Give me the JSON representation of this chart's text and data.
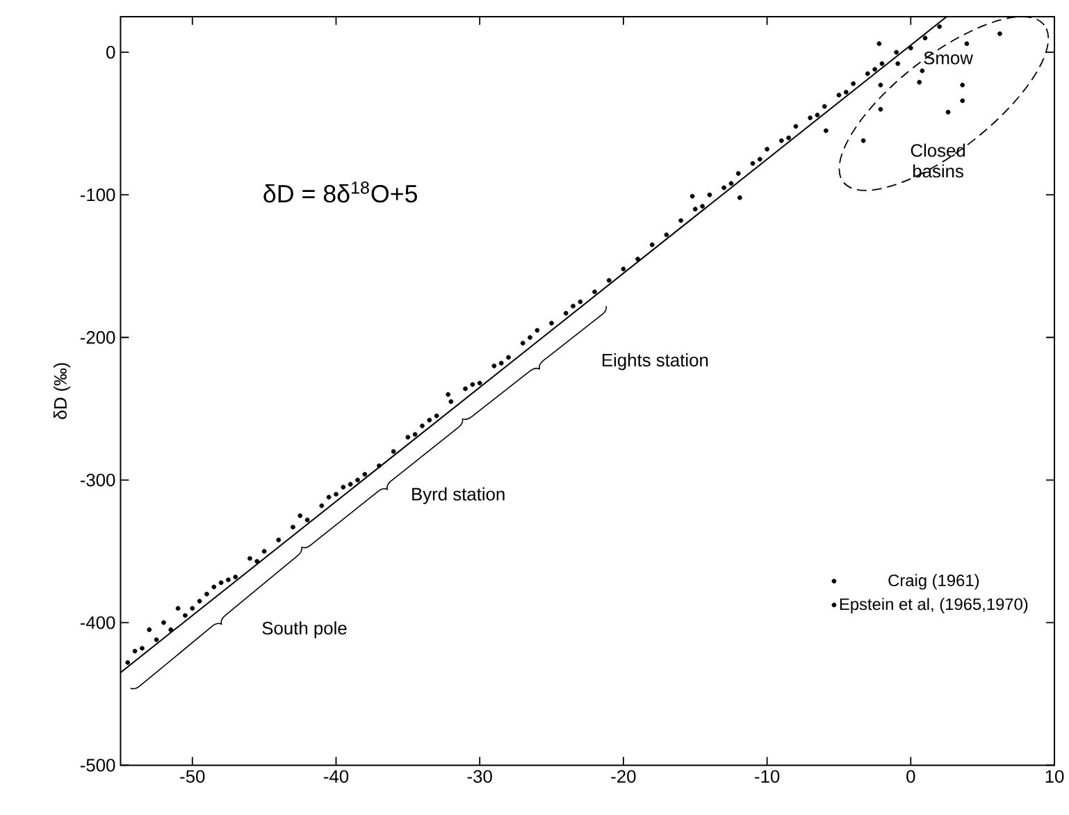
{
  "chart_data": {
    "type": "scatter",
    "ylabel": "δD (‰)",
    "xlim": [
      -55,
      10
    ],
    "ylim": [
      -500,
      25
    ],
    "xticks": [
      -50,
      -40,
      -30,
      -20,
      -10,
      0,
      10
    ],
    "yticks": [
      -500,
      -400,
      -300,
      -200,
      -100,
      0
    ],
    "marker": "circle",
    "legend": "right",
    "grid": false,
    "annotations": [
      "δD = 8δ$^{18}$O+5",
      "Smow",
      "Closed basins",
      "Eights station",
      "Byrd station",
      "South pole"
    ],
    "series": [
      {
        "name": "Craig (1961)",
        "color": "#000000",
        "x": [
          -19,
          -18,
          -17,
          -16,
          -15,
          -14.5,
          -14,
          -13,
          -12.5,
          -12,
          -11,
          -10.5,
          -10,
          -9,
          -8.5,
          -8,
          -7,
          -6.5,
          -6,
          -5,
          -4.5,
          -4,
          -3,
          -2.5,
          -2,
          -1,
          0,
          1,
          2,
          6.2,
          3.9,
          3.6,
          3.6,
          2.6,
          0.6,
          -2.1,
          -2.1,
          -3.3,
          -5.9,
          0.8,
          -0.9,
          -2.2,
          -11.9,
          -15.2
        ],
        "values": [
          -145,
          -135,
          -128,
          -118,
          -110,
          -108,
          -100,
          -95,
          -92,
          -85,
          -78,
          -75,
          -68,
          -62,
          -60,
          -52,
          -46,
          -44,
          -38,
          -30,
          -28,
          -22,
          -15,
          -12,
          -8,
          0,
          3,
          10,
          18,
          13,
          6,
          -23,
          -34,
          -42,
          -21,
          -23,
          -40,
          -62,
          -55,
          -13,
          -8,
          6,
          -102,
          -101
        ]
      },
      {
        "name": "Epstein et al, (1965,1970)",
        "color": "#000000",
        "x": [
          -54.5,
          -54,
          -53.5,
          -53,
          -52.5,
          -52,
          -51.5,
          -51,
          -50.5,
          -50,
          -49.5,
          -49,
          -48.5,
          -48,
          -47.5,
          -47,
          -46,
          -45.5,
          -45,
          -44,
          -43,
          -42.5,
          -42,
          -41,
          -40.5,
          -40,
          -39.5,
          -39,
          -38.5,
          -38,
          -37,
          -36,
          -35,
          -34.5,
          -34,
          -33.5,
          -33,
          -32.2,
          -32,
          -31,
          -30.5,
          -30,
          -29,
          -28.5,
          -28,
          -27,
          -26.5,
          -26,
          -25,
          -24,
          -23.5,
          -23,
          -22,
          -21,
          -20
        ],
        "values": [
          -428,
          -420,
          -418,
          -405,
          -412,
          -400,
          -405,
          -390,
          -395,
          -390,
          -385,
          -380,
          -375,
          -372,
          -370,
          -368,
          -355,
          -357,
          -350,
          -342,
          -333,
          -325,
          -328,
          -318,
          -312,
          -310,
          -305,
          -303,
          -300,
          -296,
          -290,
          -280,
          -270,
          -268,
          -262,
          -258,
          -255,
          -240,
          -245,
          -236,
          -233,
          -232,
          -220,
          -218,
          -214,
          -204,
          -200,
          -195,
          -190,
          -183,
          -178,
          -175,
          -168,
          -160,
          -152
        ]
      },
      {
        "type": "line",
        "marker": "none",
        "line_style": "solid",
        "color": "#000000",
        "x": [
          -55,
          2.5
        ],
        "values": [
          -435,
          25
        ]
      }
    ]
  }
}
